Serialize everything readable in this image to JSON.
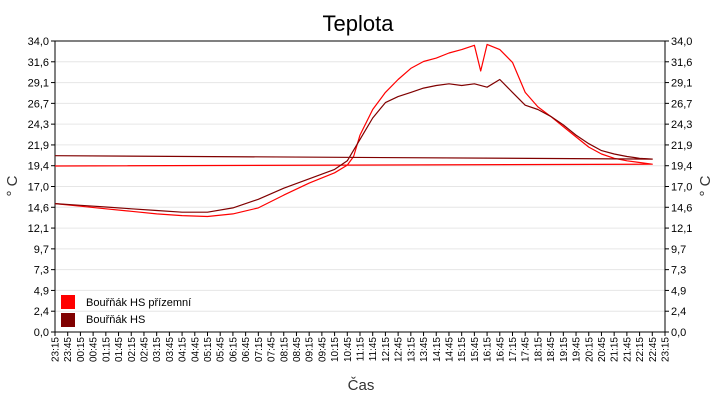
{
  "chart_data": {
    "type": "line",
    "title": "Teplota",
    "xlabel": "Čas",
    "ylabel": "° C",
    "ylabel_right": "° C",
    "ylim": [
      0,
      34
    ],
    "y_ticks": [
      "0,0",
      "2,4",
      "4,9",
      "7,3",
      "9,7",
      "12,1",
      "14,6",
      "17,0",
      "19,4",
      "21,9",
      "24,3",
      "26,7",
      "29,1",
      "31,6",
      "34,0"
    ],
    "x_ticks": [
      "23:15",
      "23:45",
      "00:15",
      "00:45",
      "01:15",
      "01:45",
      "02:15",
      "02:45",
      "03:15",
      "03:45",
      "04:15",
      "04:45",
      "05:15",
      "05:45",
      "06:15",
      "06:45",
      "07:15",
      "07:45",
      "08:15",
      "08:45",
      "09:15",
      "09:45",
      "10:15",
      "10:45",
      "11:15",
      "11:45",
      "12:15",
      "12:45",
      "13:15",
      "13:45",
      "14:15",
      "14:45",
      "15:15",
      "15:45",
      "16:15",
      "16:45",
      "17:15",
      "17:45",
      "18:15",
      "18:45",
      "19:15",
      "19:45",
      "20:15",
      "20:45",
      "21:15",
      "21:45",
      "22:15",
      "22:45",
      "23:15"
    ],
    "grid": true,
    "legend_position": "bottom-left",
    "series": [
      {
        "name": "Bouřňák HS přízemní",
        "color": "#ff0000",
        "x": [
          "23:15",
          "00:15",
          "01:15",
          "02:15",
          "03:15",
          "04:15",
          "05:15",
          "06:15",
          "07:15",
          "08:15",
          "09:15",
          "10:15",
          "10:45",
          "11:00",
          "11:15",
          "11:45",
          "12:15",
          "12:45",
          "13:15",
          "13:45",
          "14:15",
          "14:45",
          "15:15",
          "15:45",
          "16:00",
          "16:15",
          "16:45",
          "17:15",
          "17:45",
          "18:15",
          "18:45",
          "19:15",
          "19:45",
          "20:15",
          "20:45",
          "21:15",
          "21:45",
          "22:15",
          "22:45",
          "23:15"
        ],
        "y": [
          15.0,
          14.7,
          14.4,
          14.1,
          13.8,
          13.6,
          13.5,
          13.8,
          14.5,
          16.0,
          17.4,
          18.6,
          19.5,
          20.5,
          23.0,
          26.0,
          28.0,
          29.5,
          30.8,
          31.6,
          32.0,
          32.6,
          33.0,
          33.5,
          30.5,
          33.6,
          33.0,
          31.5,
          28.0,
          26.3,
          25.2,
          24.0,
          22.8,
          21.6,
          20.8,
          20.3,
          20.0,
          19.8,
          19.6,
          19.4
        ]
      },
      {
        "name": "Bouřňák HS",
        "color": "#800000",
        "x": [
          "23:15",
          "00:15",
          "01:15",
          "02:15",
          "03:15",
          "04:15",
          "05:15",
          "06:15",
          "07:15",
          "08:15",
          "09:15",
          "10:15",
          "10:45",
          "11:15",
          "11:45",
          "12:15",
          "12:45",
          "13:15",
          "13:45",
          "14:15",
          "14:45",
          "15:15",
          "15:45",
          "16:15",
          "16:45",
          "17:15",
          "17:45",
          "18:15",
          "18:45",
          "19:15",
          "19:45",
          "20:15",
          "20:45",
          "21:15",
          "21:45",
          "22:15",
          "22:45",
          "23:15"
        ],
        "y": [
          15.0,
          14.8,
          14.6,
          14.4,
          14.2,
          14.0,
          14.0,
          14.5,
          15.5,
          16.8,
          17.9,
          19.0,
          20.0,
          22.5,
          25.0,
          26.8,
          27.5,
          28.0,
          28.5,
          28.8,
          29.0,
          28.8,
          29.0,
          28.6,
          29.5,
          28.0,
          26.5,
          26.0,
          25.2,
          24.2,
          23.0,
          22.0,
          21.2,
          20.8,
          20.5,
          20.3,
          20.2,
          20.6
        ]
      }
    ]
  }
}
